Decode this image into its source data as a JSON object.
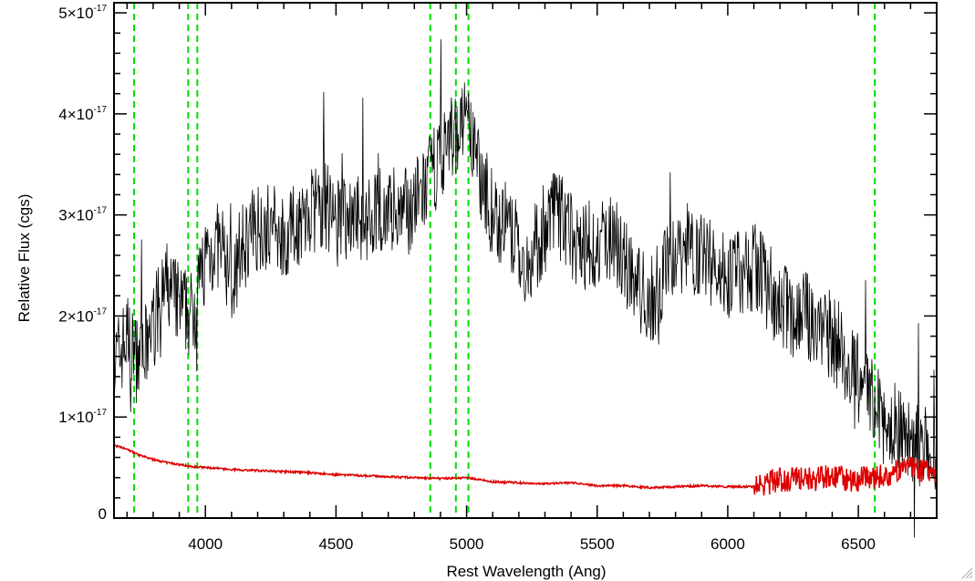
{
  "chart_data": {
    "type": "line",
    "xlabel": "Rest Wavelength (Ang)",
    "ylabel": "Relative Flux (cgs)",
    "xlim": [
      3650,
      6800
    ],
    "ylim": [
      0,
      5.1e-17
    ],
    "x_ticks": [
      4000,
      4500,
      5000,
      5500,
      6000,
      6500
    ],
    "x_tick_labels": [
      "4000",
      "4500",
      "5000",
      "5500",
      "6000",
      "6500"
    ],
    "y_ticks": [
      0,
      1e-17,
      2e-17,
      3e-17,
      4e-17,
      5e-17
    ],
    "y_tick_labels": [
      {
        "mantissa": "0",
        "exponent": ""
      },
      {
        "mantissa": "1×10",
        "exponent": "-17"
      },
      {
        "mantissa": "2×10",
        "exponent": "-17"
      },
      {
        "mantissa": "3×10",
        "exponent": "-17"
      },
      {
        "mantissa": "4×10",
        "exponent": "-17"
      },
      {
        "mantissa": "5×10",
        "exponent": "-17"
      }
    ],
    "grid": false,
    "colors": {
      "spectrum": "#000000",
      "error": "#dd0000",
      "lines": "#00dd00"
    },
    "reference_lines_x": [
      3727,
      3934,
      3969,
      4861,
      4959,
      5007,
      6563
    ],
    "series": [
      {
        "x": [
          3650,
          3700,
          3750,
          3800,
          3850,
          3900,
          3950,
          4000,
          4050,
          4100,
          4150,
          4200,
          4250,
          4300,
          4350,
          4400,
          4450,
          4500,
          4550,
          4600,
          4650,
          4700,
          4750,
          4800,
          4850,
          4900,
          4950,
          5000,
          5050,
          5100,
          5150,
          5200,
          5250,
          5300,
          5350,
          5400,
          5450,
          5500,
          5550,
          5600,
          5650,
          5700,
          5750,
          5800,
          5850,
          5900,
          5950,
          6000,
          6050,
          6100,
          6150,
          6200,
          6250,
          6300,
          6350,
          6400,
          6450,
          6500,
          6550,
          6600,
          6650,
          6700,
          6750,
          6800
        ],
        "values": [
          1.5e-17,
          1.8e-17,
          1.5e-17,
          1.9e-17,
          2.3e-17,
          2.1e-17,
          2e-17,
          2.6e-17,
          2.7e-17,
          2.4e-17,
          2.7e-17,
          2.9e-17,
          2.9e-17,
          2.8e-17,
          2.9e-17,
          3e-17,
          3.1e-17,
          3e-17,
          3e-17,
          3e-17,
          3e-17,
          3.1e-17,
          3e-17,
          3.1e-17,
          3.3e-17,
          3.6e-17,
          3.8e-17,
          3.9e-17,
          3.4e-17,
          3e-17,
          2.9e-17,
          2.6e-17,
          2.5e-17,
          2.9e-17,
          3e-17,
          2.8e-17,
          2.7e-17,
          2.7e-17,
          2.8e-17,
          2.6e-17,
          2.3e-17,
          2.1e-17,
          2.4e-17,
          2.6e-17,
          2.7e-17,
          2.6e-17,
          2.5e-17,
          2.4e-17,
          2.4e-17,
          2.5e-17,
          2.3e-17,
          2.1e-17,
          2e-17,
          2e-17,
          1.9e-17,
          1.8e-17,
          1.6e-17,
          1.3e-17,
          1.2e-17,
          1.1e-17,
          9e-18,
          8e-18,
          6e-18,
          5e-18
        ]
      },
      {
        "x": [
          3650,
          3700,
          3750,
          3800,
          3850,
          3900,
          3950,
          4000,
          4100,
          4200,
          4300,
          4400,
          4500,
          4600,
          4700,
          4800,
          4900,
          5000,
          5100,
          5200,
          5300,
          5400,
          5500,
          5600,
          5700,
          5800,
          5900,
          6000,
          6100,
          6200,
          6300,
          6400,
          6500,
          6600,
          6700,
          6800
        ],
        "values": [
          7.2e-18,
          6.8e-18,
          6.2e-18,
          5.8e-18,
          5.5e-18,
          5.3e-18,
          5.1e-18,
          5e-18,
          4.8e-18,
          4.7e-18,
          4.6e-18,
          4.5e-18,
          4.3e-18,
          4.2e-18,
          4.1e-18,
          4e-18,
          3.9e-18,
          4e-18,
          3.6e-18,
          3.5e-18,
          3.4e-18,
          3.5e-18,
          3.2e-18,
          3.2e-18,
          3e-18,
          3.1e-18,
          3.2e-18,
          3.1e-18,
          3.1e-18,
          3.8e-18,
          3.9e-18,
          4e-18,
          3.8e-18,
          4.2e-18,
          5e-18,
          4.6e-18
        ]
      }
    ]
  }
}
